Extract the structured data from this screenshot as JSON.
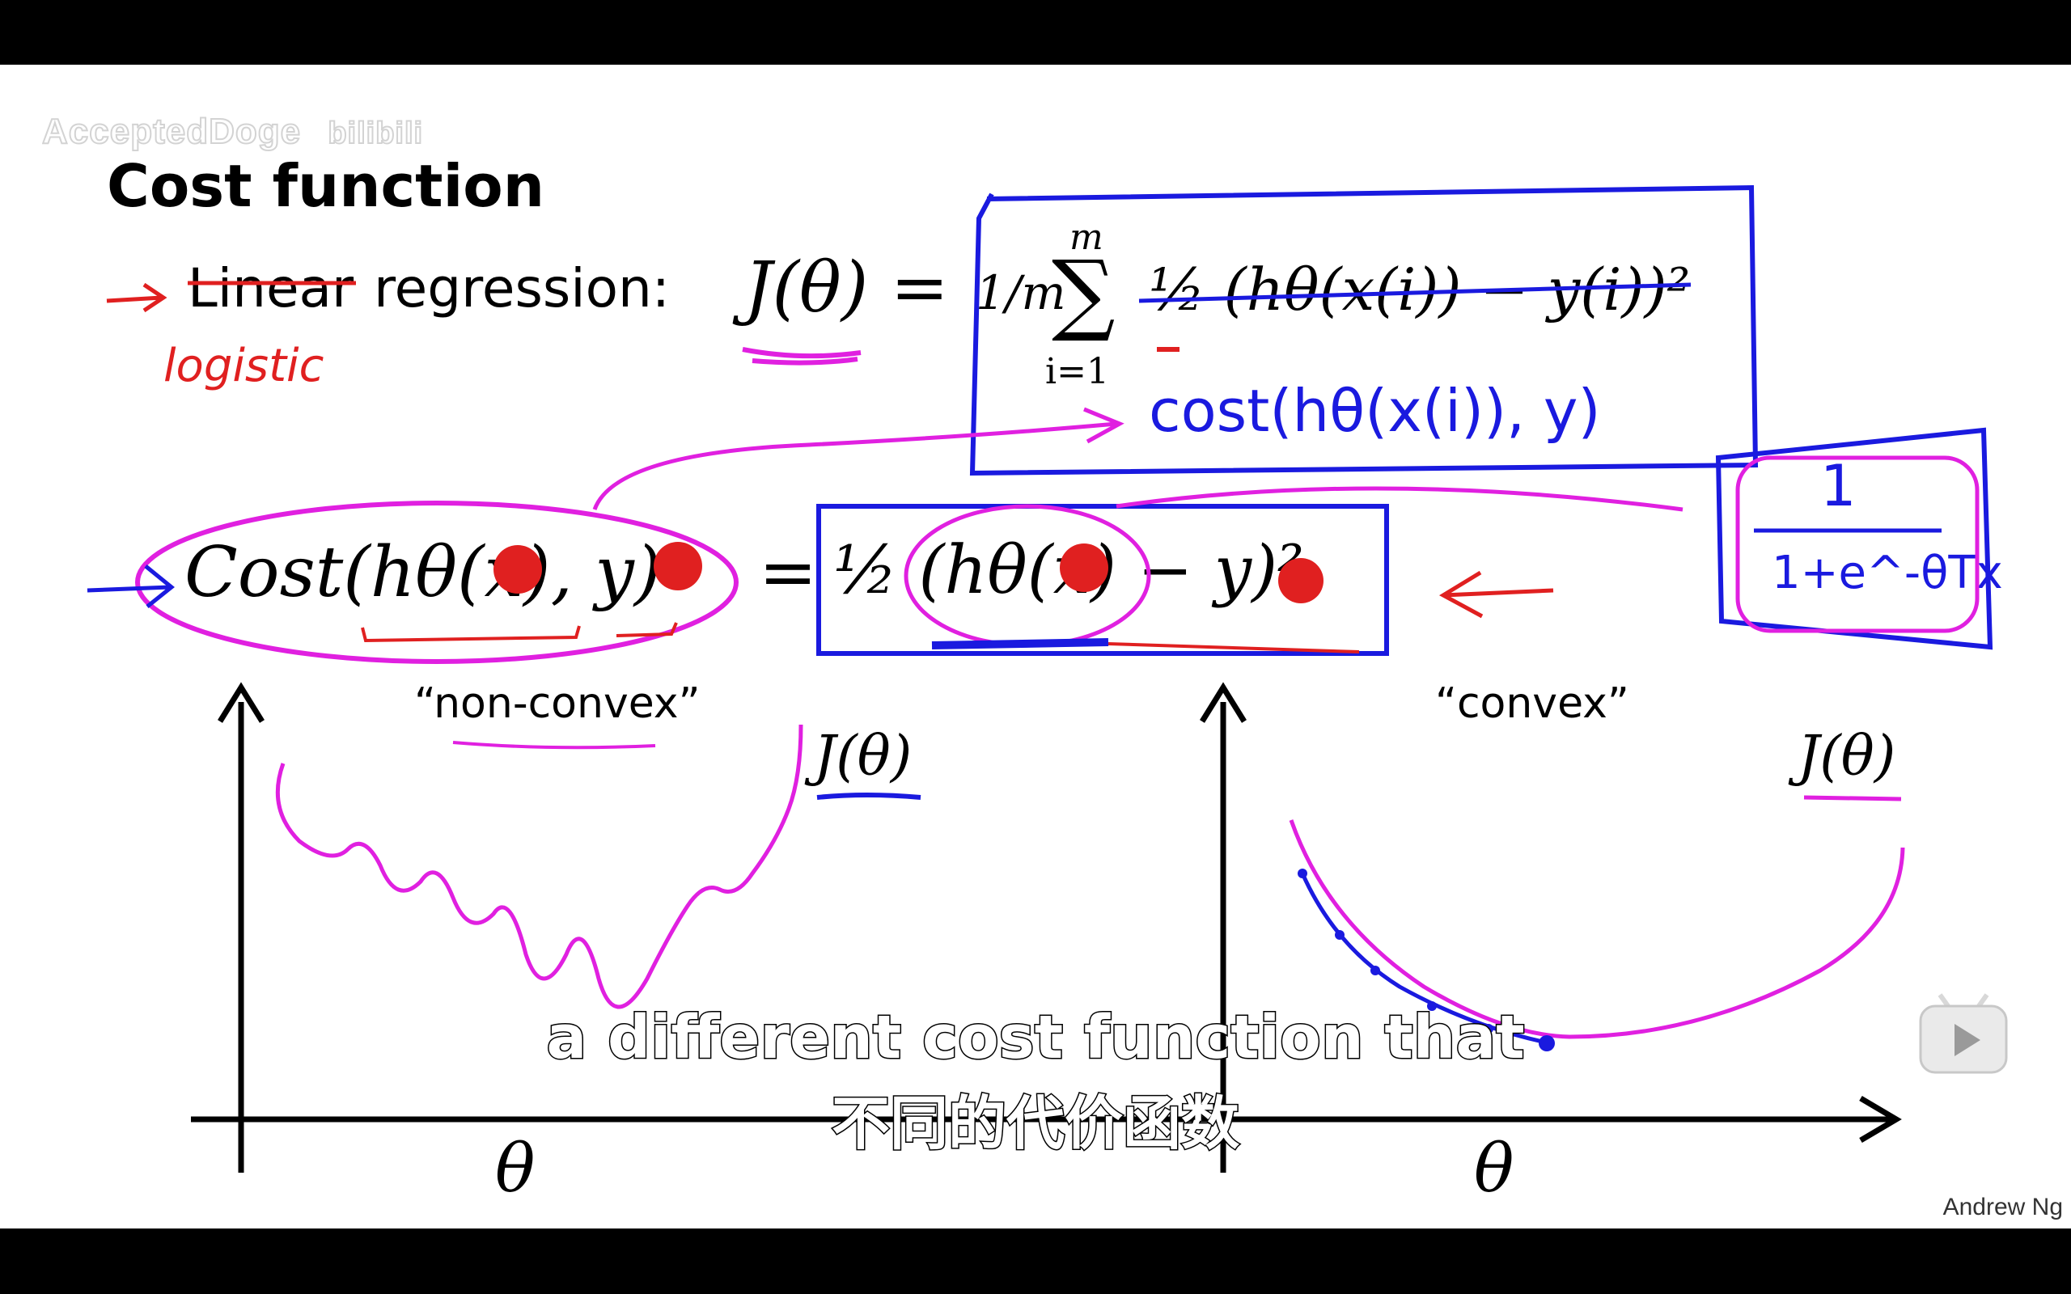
{
  "watermark": {
    "channel": "AcceptedDoge",
    "site": "bilibili"
  },
  "slide": {
    "title": "Cost function",
    "row1": {
      "crossed_word": "Linear",
      "rest": "regression:",
      "handwritten_replacement": "logistic",
      "lhs": "J(θ) =",
      "fraction": "1/m",
      "sum_upper": "m",
      "sum_lower": "i=1",
      "summand": "½ (hθ(x(i)) − y(i))²",
      "handwritten_cost": "cost(hθ(x(i)), y)"
    },
    "row2": {
      "lhs": "Cost(hθ(x), y)",
      "equals": "=",
      "rhs": "½ (hθ(x) − y)²",
      "handwritten_sigmoid_num": "1",
      "handwritten_sigmoid_den": "1+e^-θTx"
    },
    "left_plot": {
      "caption": "“non-convex”",
      "y_label": "J(θ)",
      "x_label": "θ"
    },
    "right_plot": {
      "caption": "“convex”",
      "y_label": "J(θ)",
      "x_label": "θ"
    },
    "credit": "Andrew Ng"
  },
  "subtitles": {
    "english": "a different cost function that",
    "chinese": "不同的代价函数"
  },
  "colors": {
    "blue_ink": "#1a1adf",
    "magenta_ink": "#e020e0",
    "red_ink": "#e02020"
  },
  "player": {
    "play_icon": "play-icon"
  }
}
